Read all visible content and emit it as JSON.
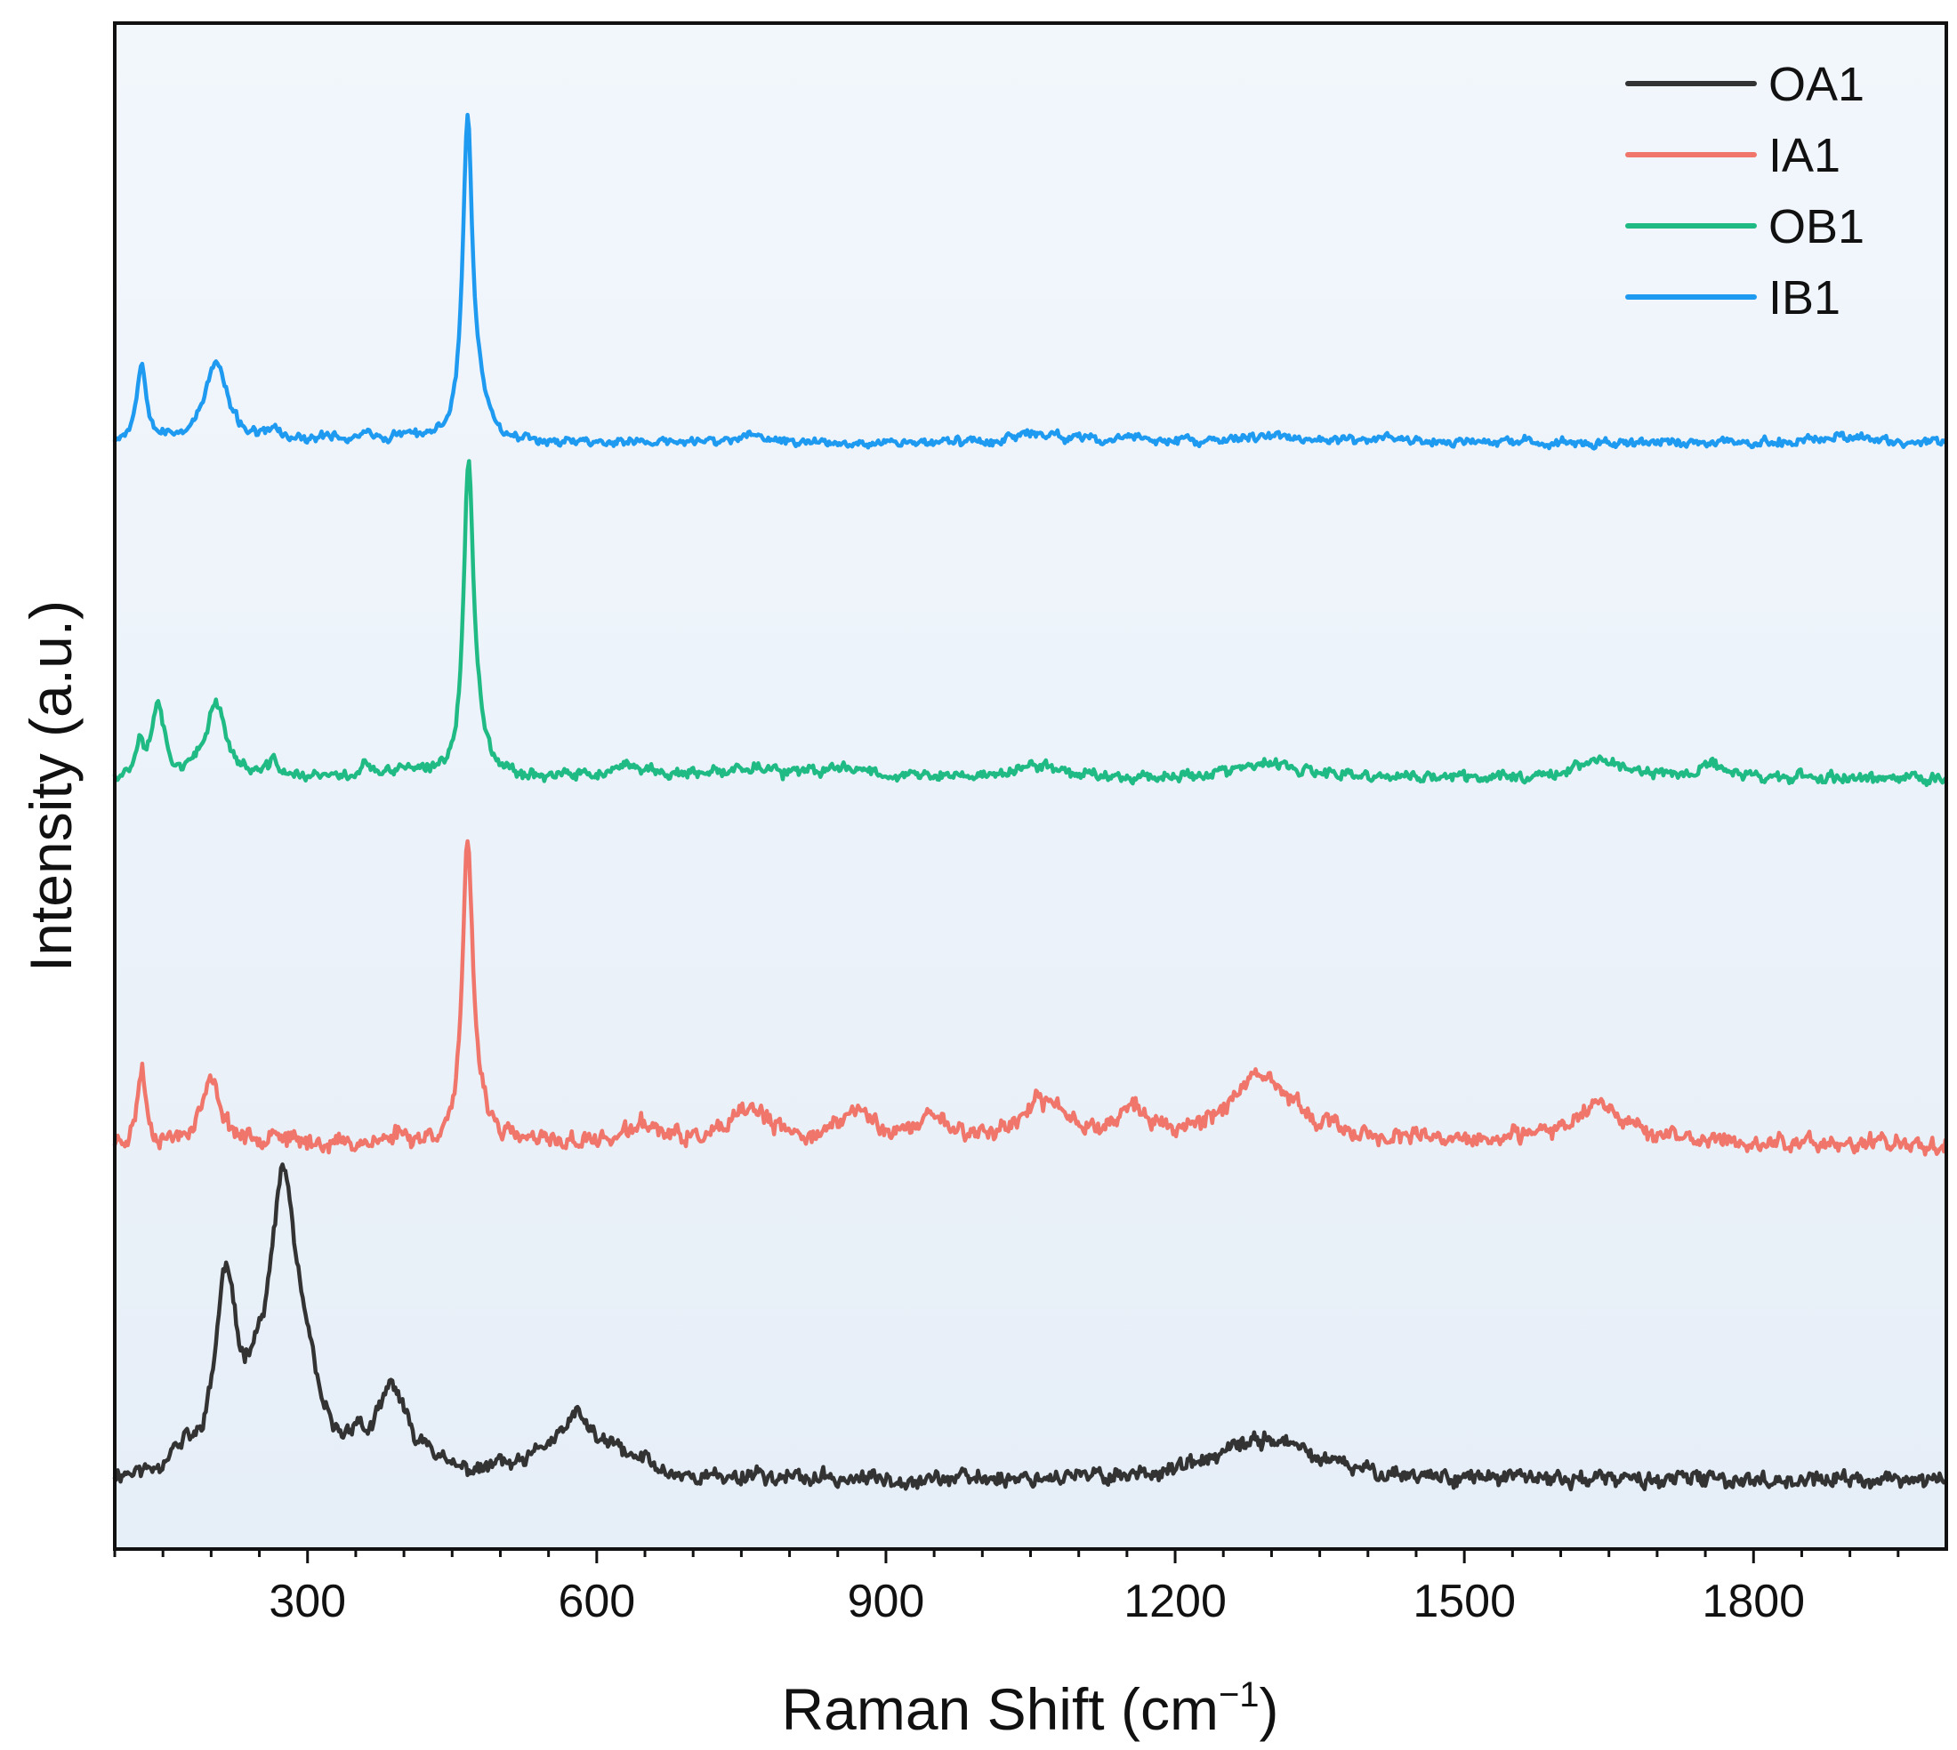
{
  "chart_data": {
    "type": "line",
    "title": "",
    "xlabel": "Raman Shift (cm",
    "xlabel_superscript": "−1",
    "xlabel_close": ")",
    "ylabel": "Intensity (a.u.)",
    "xlim": [
      100,
      2000
    ],
    "ylim": [
      0,
      10
    ],
    "x_ticks": [
      300,
      600,
      900,
      1200,
      1500,
      1800
    ],
    "x_tick_labels": [
      "300",
      "600",
      "900",
      "1200",
      "1500",
      "1800"
    ],
    "x_minor_step": 50,
    "y_ticks_visible": false,
    "grid": false,
    "legend_position": "top-right",
    "background_gradient": [
      "#f2f7fc",
      "#e6eef7"
    ],
    "series": [
      {
        "name": "OA1",
        "color": "#333333",
        "baseline": 0.45,
        "noise": 0.05,
        "seed": 11,
        "peaks": [
          {
            "x": 160,
            "h": 0.1,
            "w": 6
          },
          {
            "x": 175,
            "h": 0.1,
            "w": 5
          },
          {
            "x": 215,
            "h": 1.2,
            "w": 13
          },
          {
            "x": 245,
            "h": 0.25,
            "w": 12
          },
          {
            "x": 275,
            "h": 1.85,
            "w": 18
          },
          {
            "x": 300,
            "h": 0.3,
            "w": 15
          },
          {
            "x": 350,
            "h": 0.15,
            "w": 8
          },
          {
            "x": 388,
            "h": 0.55,
            "w": 18
          },
          {
            "x": 425,
            "h": 0.12,
            "w": 8
          },
          {
            "x": 500,
            "h": 0.06,
            "w": 8
          },
          {
            "x": 545,
            "h": 0.1,
            "w": 14
          },
          {
            "x": 580,
            "h": 0.38,
            "w": 22
          },
          {
            "x": 620,
            "h": 0.12,
            "w": 16
          },
          {
            "x": 650,
            "h": 0.08,
            "w": 10
          },
          {
            "x": 765,
            "h": 0.05,
            "w": 6
          },
          {
            "x": 1295,
            "h": 0.27,
            "w": 60
          }
        ]
      },
      {
        "name": "IA1",
        "color": "#f0766b",
        "baseline": 2.65,
        "noise": 0.055,
        "seed": 23,
        "peaks": [
          {
            "x": 128,
            "h": 0.5,
            "w": 5
          },
          {
            "x": 200,
            "h": 0.4,
            "w": 13
          },
          {
            "x": 265,
            "h": 0.1,
            "w": 6
          },
          {
            "x": 395,
            "h": 0.07,
            "w": 8
          },
          {
            "x": 466,
            "h": 1.9,
            "w": 6
          },
          {
            "x": 478,
            "h": 0.2,
            "w": 12
          },
          {
            "x": 650,
            "h": 0.12,
            "w": 20
          },
          {
            "x": 760,
            "h": 0.22,
            "w": 22
          },
          {
            "x": 870,
            "h": 0.2,
            "w": 22
          },
          {
            "x": 950,
            "h": 0.17,
            "w": 16
          },
          {
            "x": 1065,
            "h": 0.26,
            "w": 30
          },
          {
            "x": 1155,
            "h": 0.2,
            "w": 16
          },
          {
            "x": 1290,
            "h": 0.42,
            "w": 45
          },
          {
            "x": 1640,
            "h": 0.27,
            "w": 34
          }
        ]
      },
      {
        "name": "OB1",
        "color": "#20bb85",
        "baseline": 5.05,
        "noise": 0.035,
        "seed": 37,
        "peaks": [
          {
            "x": 126,
            "h": 0.22,
            "w": 5
          },
          {
            "x": 145,
            "h": 0.5,
            "w": 7
          },
          {
            "x": 205,
            "h": 0.5,
            "w": 12
          },
          {
            "x": 265,
            "h": 0.1,
            "w": 6
          },
          {
            "x": 360,
            "h": 0.1,
            "w": 5
          },
          {
            "x": 400,
            "h": 0.06,
            "w": 10
          },
          {
            "x": 467,
            "h": 2.0,
            "w": 6
          },
          {
            "x": 478,
            "h": 0.18,
            "w": 12
          },
          {
            "x": 640,
            "h": 0.07,
            "w": 25
          },
          {
            "x": 760,
            "h": 0.07,
            "w": 25
          },
          {
            "x": 860,
            "h": 0.07,
            "w": 30
          },
          {
            "x": 1060,
            "h": 0.08,
            "w": 30
          },
          {
            "x": 1295,
            "h": 0.09,
            "w": 40
          },
          {
            "x": 1640,
            "h": 0.12,
            "w": 30
          },
          {
            "x": 1760,
            "h": 0.08,
            "w": 20
          }
        ]
      },
      {
        "name": "IB1",
        "color": "#1e9af0",
        "baseline": 7.25,
        "noise": 0.028,
        "seed": 53,
        "peaks": [
          {
            "x": 128,
            "h": 0.52,
            "w": 6
          },
          {
            "x": 205,
            "h": 0.52,
            "w": 14
          },
          {
            "x": 265,
            "h": 0.08,
            "w": 6
          },
          {
            "x": 325,
            "h": 0.04,
            "w": 10
          },
          {
            "x": 360,
            "h": 0.08,
            "w": 5
          },
          {
            "x": 400,
            "h": 0.04,
            "w": 10
          },
          {
            "x": 466,
            "h": 2.05,
            "w": 6
          },
          {
            "x": 478,
            "h": 0.2,
            "w": 12
          },
          {
            "x": 760,
            "h": 0.04,
            "w": 20
          },
          {
            "x": 1060,
            "h": 0.06,
            "w": 30
          },
          {
            "x": 1160,
            "h": 0.04,
            "w": 12
          },
          {
            "x": 1300,
            "h": 0.05,
            "w": 30
          },
          {
            "x": 1420,
            "h": 0.04,
            "w": 15
          },
          {
            "x": 1890,
            "h": 0.05,
            "w": 25
          }
        ]
      }
    ]
  }
}
